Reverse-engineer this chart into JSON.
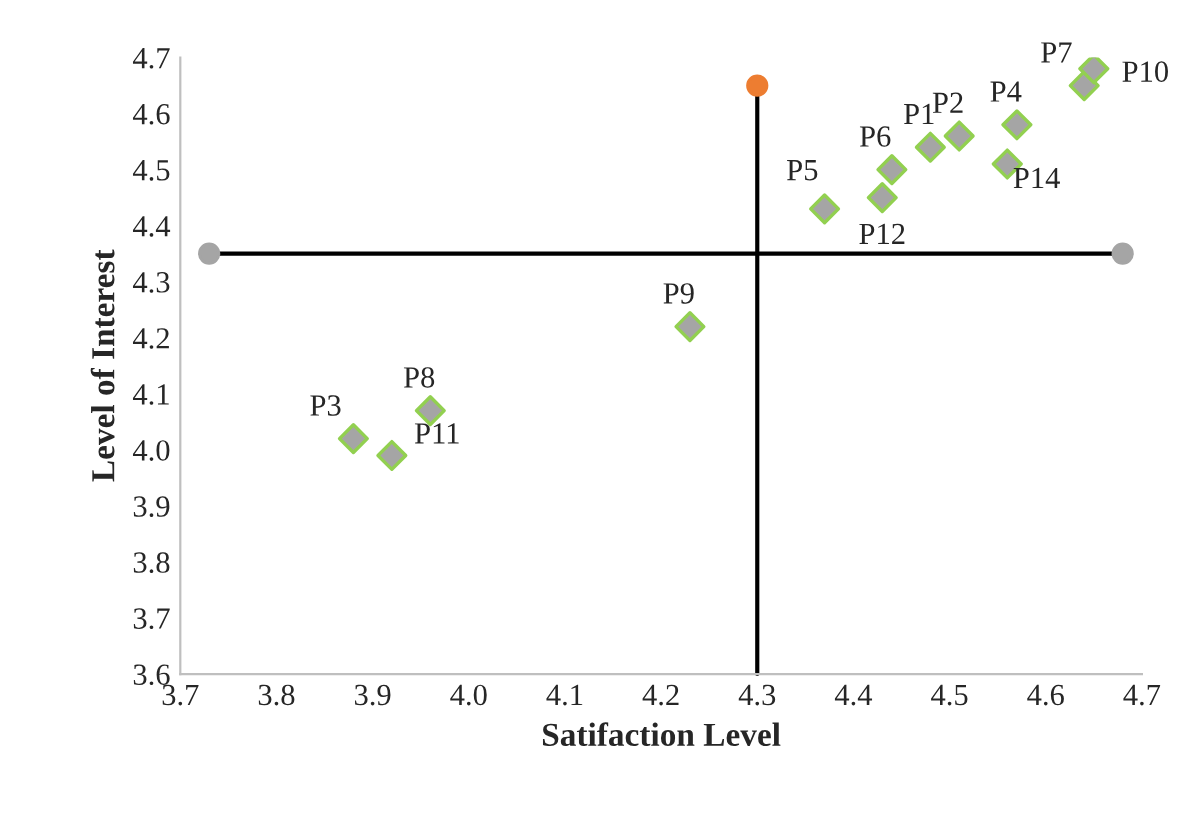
{
  "chart_data": {
    "type": "scatter",
    "xlabel": "Satifaction Level",
    "ylabel": "Level of Interest",
    "xlim": [
      3.7,
      4.7
    ],
    "xticks": [
      3.7,
      3.8,
      3.9,
      {
        "value": 4.0,
        "label": "4.0"
      },
      4.1,
      4.2,
      4.3,
      4.4,
      4.5,
      4.6,
      4.7
    ],
    "ylim": [
      3.6,
      4.7
    ],
    "yticks": [
      3.6,
      3.7,
      3.8,
      3.9,
      {
        "value": 4.0,
        "label": "4.0"
      },
      4.1,
      4.2,
      4.3,
      4.4,
      4.5,
      4.6,
      4.7
    ],
    "grid": false,
    "legend": false,
    "series": [
      {
        "marker": "diamond",
        "color": "#a5a5a5",
        "x": [
          4.48,
          4.51,
          3.88,
          4.57,
          4.37,
          4.44,
          4.64,
          3.96,
          4.23,
          4.65,
          3.92,
          4.43,
          4.56
        ],
        "values": [
          4.54,
          4.56,
          4.02,
          4.58,
          4.43,
          4.5,
          4.65,
          4.07,
          4.22,
          4.68,
          3.99,
          4.45,
          4.51
        ],
        "value_labels": [
          "P1",
          "P2",
          "P3",
          "P4",
          "P5",
          "P6",
          "P7",
          "P8",
          "P9",
          "P10",
          "P11",
          "P12",
          "P14"
        ]
      },
      {
        "type": "line",
        "color": "#000000",
        "x": [
          3.73,
          4.68
        ],
        "values": [
          4.35,
          4.35
        ],
        "marker": "circle",
        "colors": [
          "#a5a5a5",
          "#a5a5a5"
        ]
      },
      {
        "type": "line",
        "color": "#000000",
        "x": [
          4.3,
          4.3
        ],
        "values": [
          3.6,
          4.65
        ],
        "marker": "circle",
        "colors": [
          null,
          "#ed7d31"
        ]
      }
    ]
  }
}
